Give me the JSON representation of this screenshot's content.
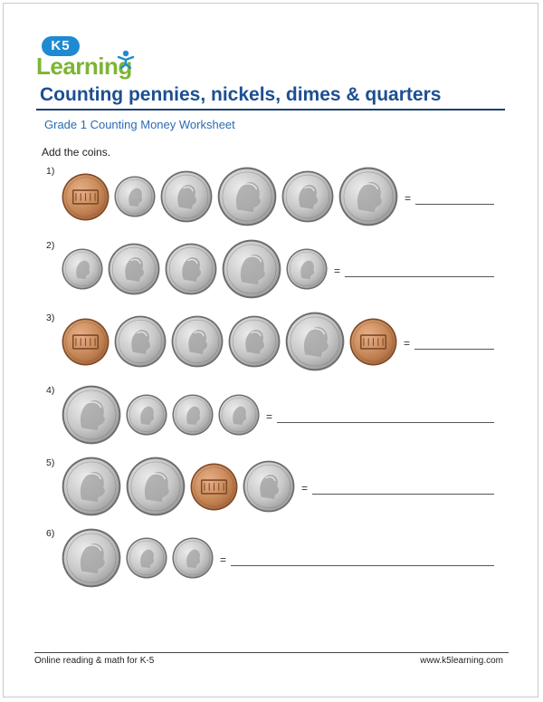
{
  "logo": {
    "badge": "K5",
    "word": "Learning"
  },
  "title": "Counting pennies, nickels, dimes & quarters",
  "subtitle": "Grade 1 Counting Money Worksheet",
  "instructions": "Add the coins.",
  "equals_sign": "=",
  "coin_colors": {
    "silver": "#c8c8c8",
    "copper": "#c98a5a"
  },
  "problems": [
    {
      "label": "1)",
      "coins": [
        "penny",
        "dime",
        "nickel",
        "quarter",
        "nickel",
        "quarter"
      ]
    },
    {
      "label": "2)",
      "coins": [
        "dime",
        "nickel",
        "nickel",
        "quarter",
        "dime"
      ]
    },
    {
      "label": "3)",
      "coins": [
        "penny",
        "nickel",
        "nickel",
        "nickel",
        "quarter",
        "penny"
      ]
    },
    {
      "label": "4)",
      "coins": [
        "quarter",
        "dime",
        "dime",
        "dime"
      ]
    },
    {
      "label": "5)",
      "coins": [
        "quarter",
        "quarter",
        "penny",
        "nickel"
      ]
    },
    {
      "label": "6)",
      "coins": [
        "quarter",
        "dime",
        "dime"
      ]
    }
  ],
  "footer": {
    "left": "Online reading & math for K-5",
    "right": "www.k5learning.com"
  }
}
